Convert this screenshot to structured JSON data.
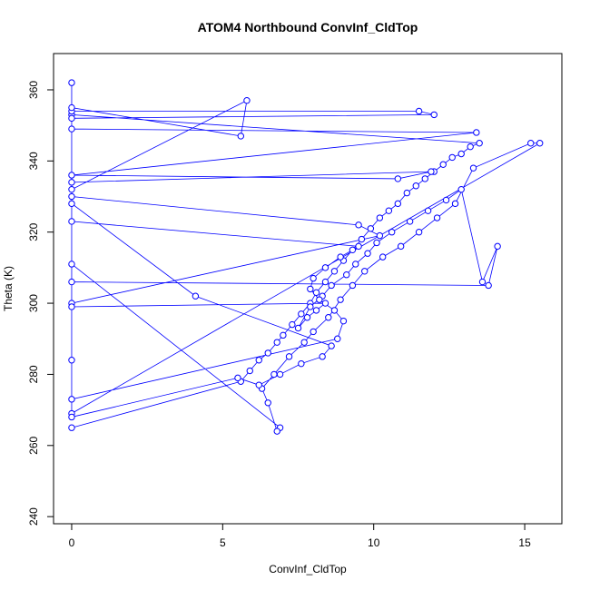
{
  "chart_data": {
    "type": "scatter",
    "title": "ATOM4 Northbound ConvInf_CldTop",
    "x_label": "ConvInf_CldTop",
    "y_label": "Theta (K)",
    "xlim": [
      -0.6,
      16.23
    ],
    "ylim": [
      238,
      370.2
    ],
    "xticks": [
      0,
      5,
      10,
      15
    ],
    "yticks": [
      240,
      260,
      280,
      300,
      320,
      340,
      360
    ],
    "series": [
      {
        "color": "#0000ff",
        "x": [
          0,
          5.6,
          5.9,
          6.2,
          6.5,
          6.8,
          7.0,
          7.3,
          7.6,
          7.9,
          8.1,
          8.4,
          8.7,
          9.0,
          9.3,
          9.6,
          9.9,
          10.2,
          10.5,
          10.8,
          11.1,
          11.4,
          11.7,
          12.0,
          12.3,
          12.6,
          12.9,
          13.2,
          13.5,
          0,
          0,
          11.5,
          12.0,
          0,
          0,
          13.4,
          0,
          10.8,
          11.9,
          0,
          0,
          5.8,
          5.6,
          0,
          0,
          9.5,
          10.2,
          0,
          0,
          8.4,
          8.1,
          7.8,
          7.5,
          7.9,
          8.3,
          8.6,
          9.1,
          9.4,
          9.8,
          10.1,
          10.6,
          11.2,
          11.8,
          12.4,
          12.9,
          13.6,
          14.1,
          13.8,
          0,
          0,
          6.9,
          6.8,
          6.5,
          6.3,
          6.7,
          7.2,
          7.7,
          8.0,
          8.5,
          8.9,
          9.3,
          9.7,
          10.3,
          10.9,
          11.5,
          12.1,
          12.7,
          13.3,
          15.2,
          15.5,
          0,
          0,
          8.8,
          9.0,
          8.7,
          8.2,
          7.9,
          8.0,
          8.4,
          8.9,
          9.5,
          0,
          0,
          4.1,
          8.6,
          8.3,
          7.6,
          6.9,
          6.2,
          5.5,
          0,
          0,
          0
        ],
        "values": [
          265,
          278,
          281,
          284,
          286,
          289,
          291,
          294,
          297,
          300,
          303,
          306,
          309,
          312,
          315,
          318,
          321,
          324,
          326,
          328,
          331,
          333,
          335,
          337,
          339,
          341,
          342,
          344,
          345,
          353,
          354,
          354,
          353,
          352,
          349,
          348,
          336,
          335,
          337,
          334,
          332,
          357,
          347,
          355,
          330,
          322,
          319,
          300,
          299,
          300,
          298,
          296,
          293,
          299,
          302,
          305,
          308,
          311,
          314,
          317,
          320,
          323,
          326,
          329,
          332,
          306,
          316,
          305,
          306,
          311,
          265,
          264,
          272,
          276,
          280,
          285,
          289,
          292,
          296,
          301,
          305,
          309,
          313,
          316,
          320,
          324,
          328,
          338,
          345,
          345,
          269,
          273,
          290,
          295,
          298,
          301,
          304,
          307,
          310,
          313,
          316,
          323,
          328,
          302,
          288,
          285,
          283,
          280,
          277,
          279,
          268,
          362,
          284
        ]
      }
    ]
  }
}
